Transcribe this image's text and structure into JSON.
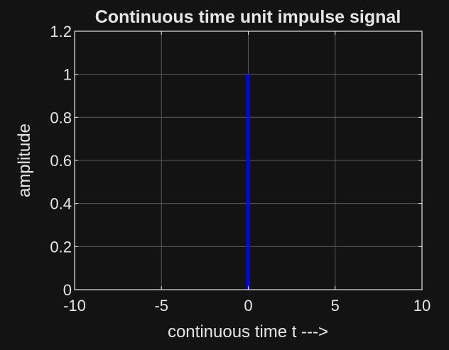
{
  "chart_data": {
    "type": "line",
    "title": "Continuous time unit impulse signal",
    "xlabel": "continuous time t --->",
    "ylabel": "amplitude",
    "xlim": [
      -10,
      10
    ],
    "ylim": [
      0,
      1.2
    ],
    "xticks": [
      -10,
      -5,
      0,
      5,
      10
    ],
    "xtick_labels": [
      "-10",
      "-5",
      "0",
      "5",
      "10"
    ],
    "yticks": [
      0,
      0.2,
      0.4,
      0.6,
      0.8,
      1,
      1.2
    ],
    "ytick_labels": [
      "0",
      "0.2",
      "0.4",
      "0.6",
      "0.8",
      "1",
      "1.2"
    ],
    "grid": true,
    "series": [
      {
        "x": [
          0,
          0
        ],
        "y": [
          0,
          1
        ],
        "color": "#0000ff"
      }
    ]
  },
  "colors": {
    "background": "#131313",
    "axes_face": "#131313",
    "axes_edge": "#e6e6e6",
    "grid": "#5a5a5a",
    "text": "#e6e6e6"
  }
}
